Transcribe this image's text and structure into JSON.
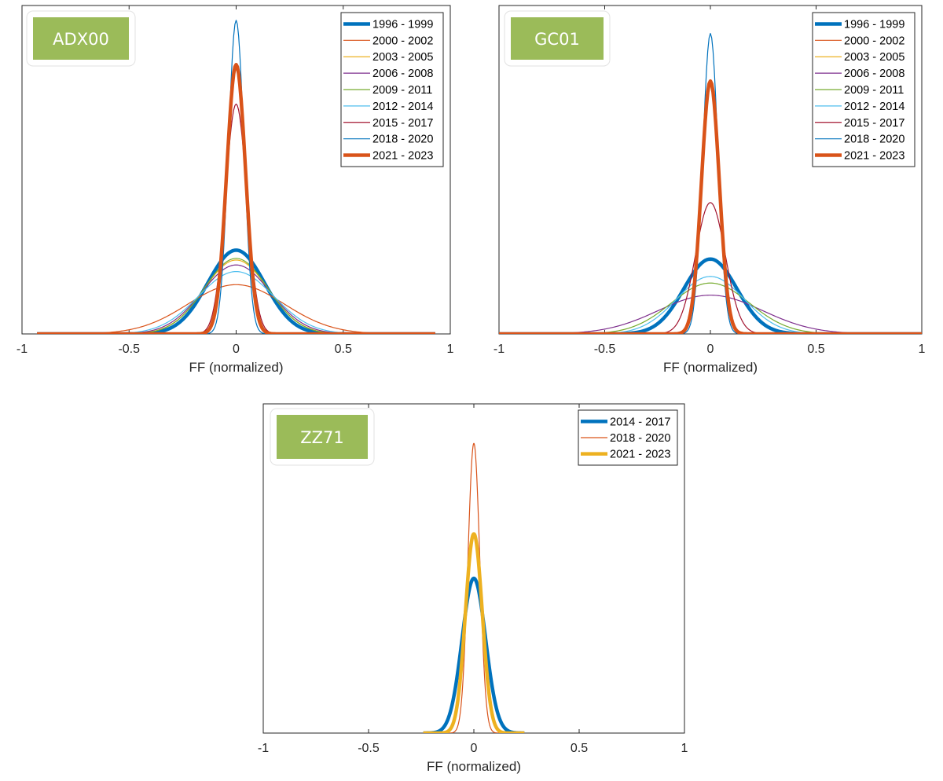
{
  "chart_data": [
    {
      "type": "line",
      "tag": "ADX00",
      "xlabel": "FF (normalized)",
      "ylabel": "",
      "xlim": [
        -1,
        1
      ],
      "xticks": [
        "-1",
        "-0.5",
        "0",
        "0.5",
        "1"
      ],
      "y_axis_shown": false,
      "grid": false,
      "legend_position": "top-right",
      "series": [
        {
          "name": "1996 - 1999",
          "color": "#0072BD",
          "width": 4.5,
          "peak": 0.255,
          "sigma": 0.133,
          "range": [
            -0.93,
            0.93
          ]
        },
        {
          "name": "2000 - 2002",
          "color": "#D95319",
          "width": 1.2,
          "peak": 0.15,
          "sigma": 0.225,
          "range": [
            -0.93,
            0.93
          ]
        },
        {
          "name": "2003 - 2005",
          "color": "#EDB120",
          "width": 1.2,
          "peak": 0.225,
          "sigma": 0.15,
          "range": [
            -0.93,
            0.93
          ]
        },
        {
          "name": "2006 - 2008",
          "color": "#7E2F8E",
          "width": 1.2,
          "peak": 0.21,
          "sigma": 0.16,
          "range": [
            -0.93,
            0.93
          ]
        },
        {
          "name": "2009 - 2011",
          "color": "#77AC30",
          "width": 1.2,
          "peak": 0.23,
          "sigma": 0.148,
          "range": [
            -0.93,
            0.93
          ]
        },
        {
          "name": "2012 - 2014",
          "color": "#4DBEEE",
          "width": 1.2,
          "peak": 0.19,
          "sigma": 0.175,
          "range": [
            -0.93,
            0.93
          ]
        },
        {
          "name": "2015 - 2017",
          "color": "#A2142F",
          "width": 1.2,
          "peak": 0.7,
          "sigma": 0.05,
          "range": [
            -0.93,
            0.93
          ]
        },
        {
          "name": "2018 - 2020",
          "color": "#0072BD",
          "width": 1.2,
          "peak": 0.955,
          "sigma": 0.036,
          "range": [
            -0.93,
            0.93
          ]
        },
        {
          "name": "2021 - 2023",
          "color": "#D95319",
          "width": 4.5,
          "peak": 0.82,
          "sigma": 0.044,
          "range": [
            -0.93,
            0.93
          ]
        }
      ]
    },
    {
      "type": "line",
      "tag": "GC01",
      "xlabel": "FF (normalized)",
      "ylabel": "",
      "xlim": [
        -1,
        1
      ],
      "xticks": [
        "-1",
        "-0.5",
        "0",
        "0.5",
        "1"
      ],
      "y_axis_shown": false,
      "grid": false,
      "legend_position": "top-right",
      "series": [
        {
          "name": "1996 - 1999",
          "color": "#0072BD",
          "width": 4.5,
          "peak": 0.228,
          "sigma": 0.125,
          "range": [
            -1,
            1
          ]
        },
        {
          "name": "2000 - 2002",
          "color": "#D95319",
          "width": 1.2,
          "peak": 0.0,
          "sigma": 0.1,
          "range": [
            -1,
            1
          ]
        },
        {
          "name": "2003 - 2005",
          "color": "#EDB120",
          "width": 1.2,
          "peak": 0.0,
          "sigma": 0.1,
          "range": [
            -1,
            1
          ]
        },
        {
          "name": "2006 - 2008",
          "color": "#7E2F8E",
          "width": 1.2,
          "peak": 0.118,
          "sigma": 0.245,
          "range": [
            -1,
            1
          ]
        },
        {
          "name": "2009 - 2011",
          "color": "#77AC30",
          "width": 1.2,
          "peak": 0.155,
          "sigma": 0.185,
          "range": [
            -1,
            1
          ]
        },
        {
          "name": "2012 - 2014",
          "color": "#4DBEEE",
          "width": 1.2,
          "peak": 0.175,
          "sigma": 0.16,
          "range": [
            -1,
            1
          ]
        },
        {
          "name": "2015 - 2017",
          "color": "#A2142F",
          "width": 1.2,
          "peak": 0.4,
          "sigma": 0.07,
          "range": [
            -1,
            1
          ]
        },
        {
          "name": "2018 - 2020",
          "color": "#0072BD",
          "width": 1.2,
          "peak": 0.915,
          "sigma": 0.036,
          "range": [
            -1,
            1
          ]
        },
        {
          "name": "2021 - 2023",
          "color": "#D95319",
          "width": 4.5,
          "peak": 0.77,
          "sigma": 0.042,
          "range": [
            -1,
            1
          ]
        }
      ]
    },
    {
      "type": "line",
      "tag": "ZZ71",
      "xlabel": "FF (normalized)",
      "ylabel": "",
      "xlim": [
        -1,
        1
      ],
      "xticks": [
        "-1",
        "-0.5",
        "0",
        "0.5",
        "1"
      ],
      "y_axis_shown": false,
      "grid": false,
      "legend_position": "top-right",
      "series": [
        {
          "name": "2014 - 2017",
          "color": "#0072BD",
          "width": 4.5,
          "peak": 0.47,
          "sigma": 0.056,
          "range": [
            -0.24,
            0.24
          ]
        },
        {
          "name": "2018 - 2020",
          "color": "#D95319",
          "width": 1.2,
          "peak": 0.88,
          "sigma": 0.028,
          "range": [
            -0.24,
            0.24
          ]
        },
        {
          "name": "2021 - 2023",
          "color": "#EDB120",
          "width": 4.5,
          "peak": 0.605,
          "sigma": 0.04,
          "range": [
            -0.24,
            0.24
          ]
        }
      ]
    }
  ]
}
